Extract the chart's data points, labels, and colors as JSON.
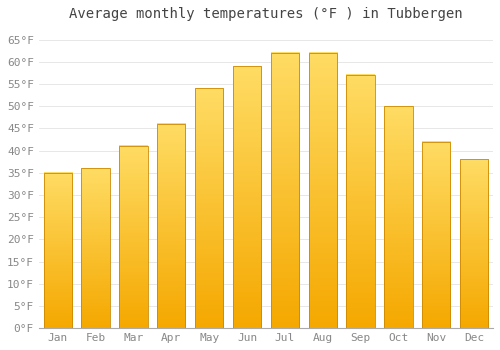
{
  "title": "Average monthly temperatures (°F ) in Tubbergen",
  "months": [
    "Jan",
    "Feb",
    "Mar",
    "Apr",
    "May",
    "Jun",
    "Jul",
    "Aug",
    "Sep",
    "Oct",
    "Nov",
    "Dec"
  ],
  "values": [
    35,
    36,
    41,
    46,
    54,
    59,
    62,
    62,
    57,
    50,
    42,
    38
  ],
  "ylim": [
    0,
    68
  ],
  "yticks": [
    0,
    5,
    10,
    15,
    20,
    25,
    30,
    35,
    40,
    45,
    50,
    55,
    60,
    65
  ],
  "ytick_labels": [
    "0°F",
    "5°F",
    "10°F",
    "15°F",
    "20°F",
    "25°F",
    "30°F",
    "35°F",
    "40°F",
    "45°F",
    "50°F",
    "55°F",
    "60°F",
    "65°F"
  ],
  "bar_color_bottom": "#F5A800",
  "bar_color_top": "#FFD966",
  "bar_edge_color": "#CC8800",
  "background_color": "#FFFFFF",
  "grid_color": "#DDDDDD",
  "title_fontsize": 10,
  "tick_fontsize": 8,
  "title_color": "#444444",
  "tick_color": "#888888",
  "bar_width": 0.75
}
